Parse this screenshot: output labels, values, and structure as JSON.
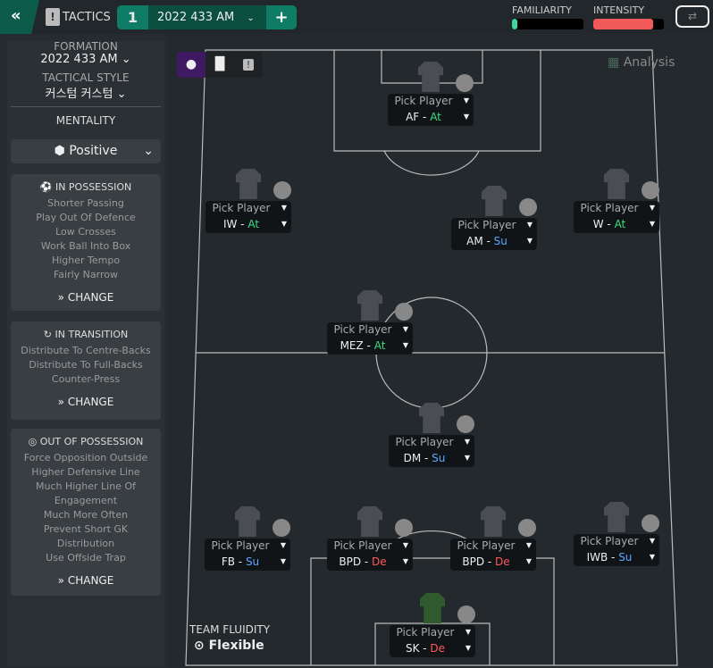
{
  "header": {
    "back_icon": "double-chevron-left",
    "title": "TACTICS",
    "tab_number": "1",
    "tab_name": "2022 433 AM",
    "add_label": "+",
    "familiarity_label": "FAMILIARITY",
    "familiarity_level": 0.08,
    "intensity_label": "INTENSITY",
    "intensity_level": 0.85,
    "familiarity_color": "#3fd6a0",
    "intensity_color": "#f25a5a"
  },
  "sidebar": {
    "formation_label": "FORMATION",
    "formation_value": "2022 433 AM",
    "style_label": "TACTICAL STYLE",
    "style_value": "커스텀 커스텀",
    "mentality_label": "MENTALITY",
    "mentality_value": "Positive",
    "sections": [
      {
        "title": "IN POSSESSION",
        "items": [
          "Shorter Passing",
          "Play Out Of Defence",
          "Low Crosses",
          "Work Ball Into Box",
          "Higher Tempo",
          "Fairly Narrow"
        ],
        "change": "CHANGE"
      },
      {
        "title": "IN TRANSITION",
        "items": [
          "Distribute To Centre-Backs",
          "Distribute To Full-Backs",
          "Counter-Press"
        ],
        "change": "CHANGE"
      },
      {
        "title": "OUT OF POSSESSION",
        "items": [
          "Force Opposition Outside",
          "Higher Defensive Line",
          "Much Higher Line Of",
          "Engagement",
          "Much More Often",
          "Prevent Short GK",
          "Distribution",
          "Use Offside Trap"
        ],
        "change": "CHANGE"
      }
    ]
  },
  "pitch": {
    "analysis_label": "Analysis",
    "fluidity_label": "TEAM FLUIDITY",
    "fluidity_value": "Flexible",
    "duty_colors": {
      "At": "#3ddc84",
      "Su": "#5aa9ff",
      "De": "#ff5a5a"
    },
    "players": [
      {
        "pick": "Pick Player",
        "role": "AF",
        "duty": "At"
      },
      {
        "pick": "Pick Player",
        "role": "IW",
        "duty": "At"
      },
      {
        "pick": "Pick Player",
        "role": "AM",
        "duty": "Su"
      },
      {
        "pick": "Pick Player",
        "role": "W",
        "duty": "At"
      },
      {
        "pick": "Pick Player",
        "role": "MEZ",
        "duty": "At"
      },
      {
        "pick": "Pick Player",
        "role": "DM",
        "duty": "Su"
      },
      {
        "pick": "Pick Player",
        "role": "FB",
        "duty": "Su"
      },
      {
        "pick": "Pick Player",
        "role": "BPD",
        "duty": "De"
      },
      {
        "pick": "Pick Player",
        "role": "BPD",
        "duty": "De"
      },
      {
        "pick": "Pick Player",
        "role": "IWB",
        "duty": "Su"
      },
      {
        "pick": "Pick Player",
        "role": "SK",
        "duty": "De"
      }
    ]
  }
}
